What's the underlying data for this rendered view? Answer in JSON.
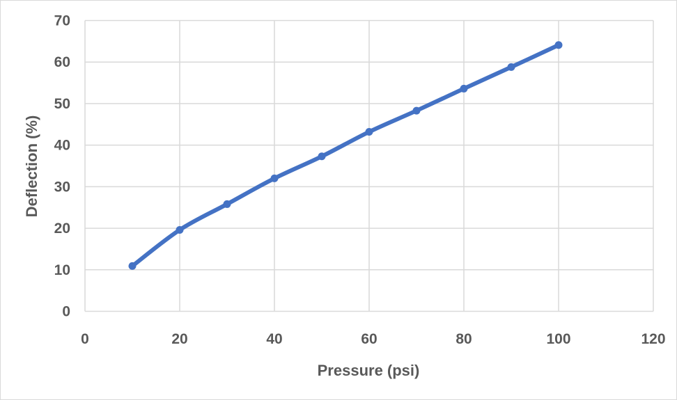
{
  "chart_data": {
    "type": "line",
    "title": "",
    "xlabel": "Pressure (psi)",
    "ylabel": "Deflection (%)",
    "xlim": [
      0,
      120
    ],
    "ylim": [
      0,
      70
    ],
    "xticks": [
      0,
      20,
      40,
      60,
      80,
      100,
      120
    ],
    "yticks": [
      0,
      10,
      20,
      30,
      40,
      50,
      60,
      70
    ],
    "grid": true,
    "legend": "none",
    "series": [
      {
        "color": "#4472C4",
        "markers": true,
        "smooth": true,
        "x": [
          10,
          20,
          30,
          40,
          50,
          60,
          70,
          80,
          90,
          100
        ],
        "y": [
          10.9,
          19.6,
          25.8,
          32.0,
          37.3,
          43.2,
          48.3,
          53.6,
          58.8,
          64.1
        ]
      }
    ]
  }
}
